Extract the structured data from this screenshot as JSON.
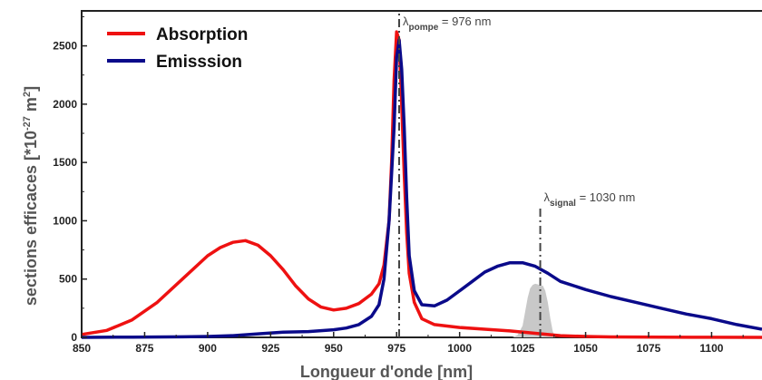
{
  "chart_data": {
    "type": "line",
    "xlabel": "Longueur d'onde  [nm]",
    "ylabel": "sections efficaces  [*10",
    "ylabel_exp": "-27",
    "ylabel_unit": "m",
    "ylabel_unit_exp": "2",
    "ylabel_close": "]",
    "xlim": [
      850,
      1120
    ],
    "ylim": [
      0,
      2800
    ],
    "x_ticks": [
      850,
      875,
      900,
      925,
      950,
      975,
      1000,
      1025,
      1050,
      1075,
      1100
    ],
    "y_ticks": [
      0,
      500,
      1000,
      1500,
      2000,
      2500
    ],
    "grid": false,
    "legend_position": "top-left",
    "series": [
      {
        "name": "Absorption",
        "color": "#ee1111",
        "x": [
          850,
          860,
          870,
          880,
          890,
          900,
          905,
          910,
          915,
          920,
          925,
          930,
          935,
          940,
          945,
          950,
          955,
          960,
          965,
          968,
          970,
          972,
          973,
          974,
          975,
          976,
          977,
          978,
          979,
          980,
          982,
          985,
          990,
          1000,
          1010,
          1020,
          1030,
          1040,
          1050,
          1060,
          1080,
          1100,
          1120
        ],
        "y": [
          25,
          60,
          150,
          300,
          500,
          700,
          770,
          815,
          830,
          790,
          700,
          580,
          440,
          330,
          260,
          235,
          250,
          290,
          370,
          460,
          620,
          1000,
          1500,
          2200,
          2620,
          2550,
          2000,
          1400,
          900,
          550,
          300,
          160,
          110,
          85,
          70,
          55,
          35,
          15,
          8,
          4,
          2,
          1,
          0
        ]
      },
      {
        "name": "Emisssion",
        "color": "#0a0a8a",
        "x": [
          850,
          870,
          890,
          900,
          910,
          920,
          930,
          940,
          950,
          955,
          960,
          965,
          968,
          970,
          972,
          974,
          975,
          976,
          977,
          978,
          979,
          980,
          982,
          985,
          990,
          995,
          1000,
          1005,
          1010,
          1015,
          1020,
          1025,
          1030,
          1035,
          1040,
          1050,
          1060,
          1070,
          1080,
          1090,
          1100,
          1110,
          1120
        ],
        "y": [
          0,
          2,
          5,
          8,
          15,
          30,
          45,
          50,
          65,
          80,
          110,
          180,
          280,
          500,
          1000,
          1800,
          2400,
          2550,
          2300,
          1800,
          1200,
          700,
          400,
          280,
          270,
          320,
          400,
          480,
          560,
          610,
          640,
          640,
          610,
          550,
          480,
          410,
          350,
          300,
          250,
          200,
          160,
          110,
          70
        ]
      }
    ],
    "shaded_signal": {
      "color": "#c8c8c8",
      "x": [
        1021,
        1023,
        1025,
        1026,
        1027,
        1028,
        1029,
        1030,
        1031,
        1032,
        1033,
        1034,
        1035,
        1036,
        1037,
        1038
      ],
      "y": [
        0,
        20,
        100,
        220,
        340,
        420,
        450,
        460,
        455,
        440,
        445,
        400,
        300,
        160,
        50,
        0
      ]
    },
    "annotations": [
      {
        "x": 976,
        "y_from": 0,
        "y_to": 2800,
        "label_main": "λ",
        "label_sub": "pompe",
        "label_rest": " = 976 nm"
      },
      {
        "x": 1032,
        "y_from": 0,
        "y_to": 1120,
        "label_main": "λ",
        "label_sub": "signal",
        "label_rest": " = 1030 nm"
      }
    ]
  }
}
